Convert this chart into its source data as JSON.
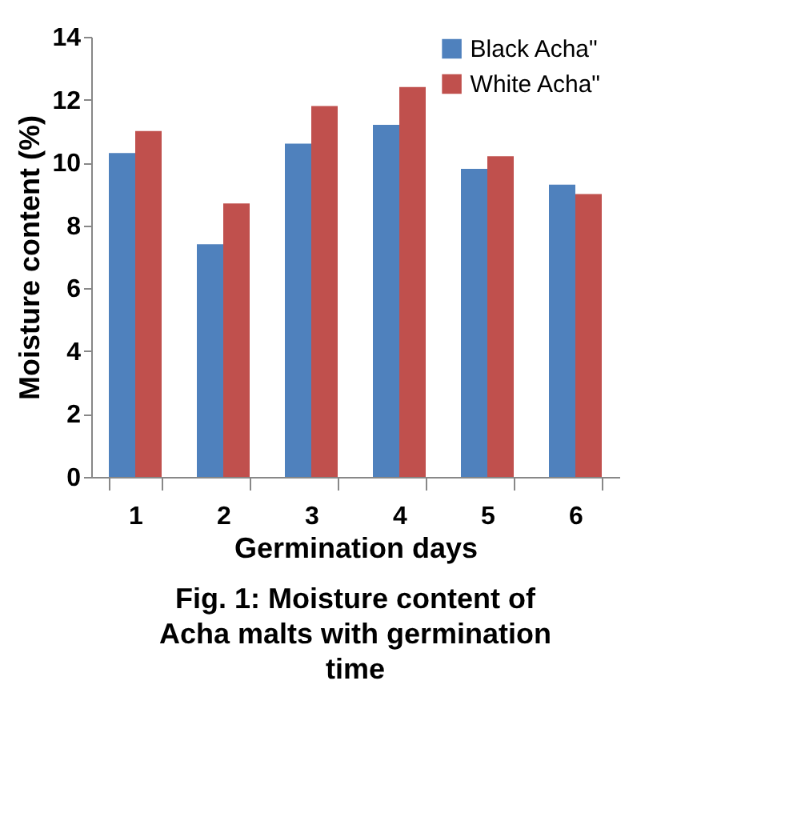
{
  "chart_data": {
    "type": "bar",
    "xlabel": "Germination days",
    "ylabel": "Moisture content (%)",
    "categories": [
      "1",
      "2",
      "3",
      "4",
      "5",
      "6"
    ],
    "series": [
      {
        "name": "Black Acha\"",
        "color": "#4f81bd",
        "values": [
          10.3,
          7.4,
          10.6,
          11.2,
          9.8,
          9.3
        ]
      },
      {
        "name": "White Acha\"",
        "color": "#c0504d",
        "values": [
          11.0,
          8.7,
          11.8,
          12.4,
          10.2,
          9.0
        ]
      }
    ],
    "ylim": [
      0,
      14
    ],
    "yticks": [
      0,
      2,
      4,
      6,
      8,
      10,
      12,
      14
    ],
    "grid": false,
    "legend": "top right",
    "annotations": [
      "Fig. 1: Moisture content of Acha malts with germination time"
    ]
  }
}
